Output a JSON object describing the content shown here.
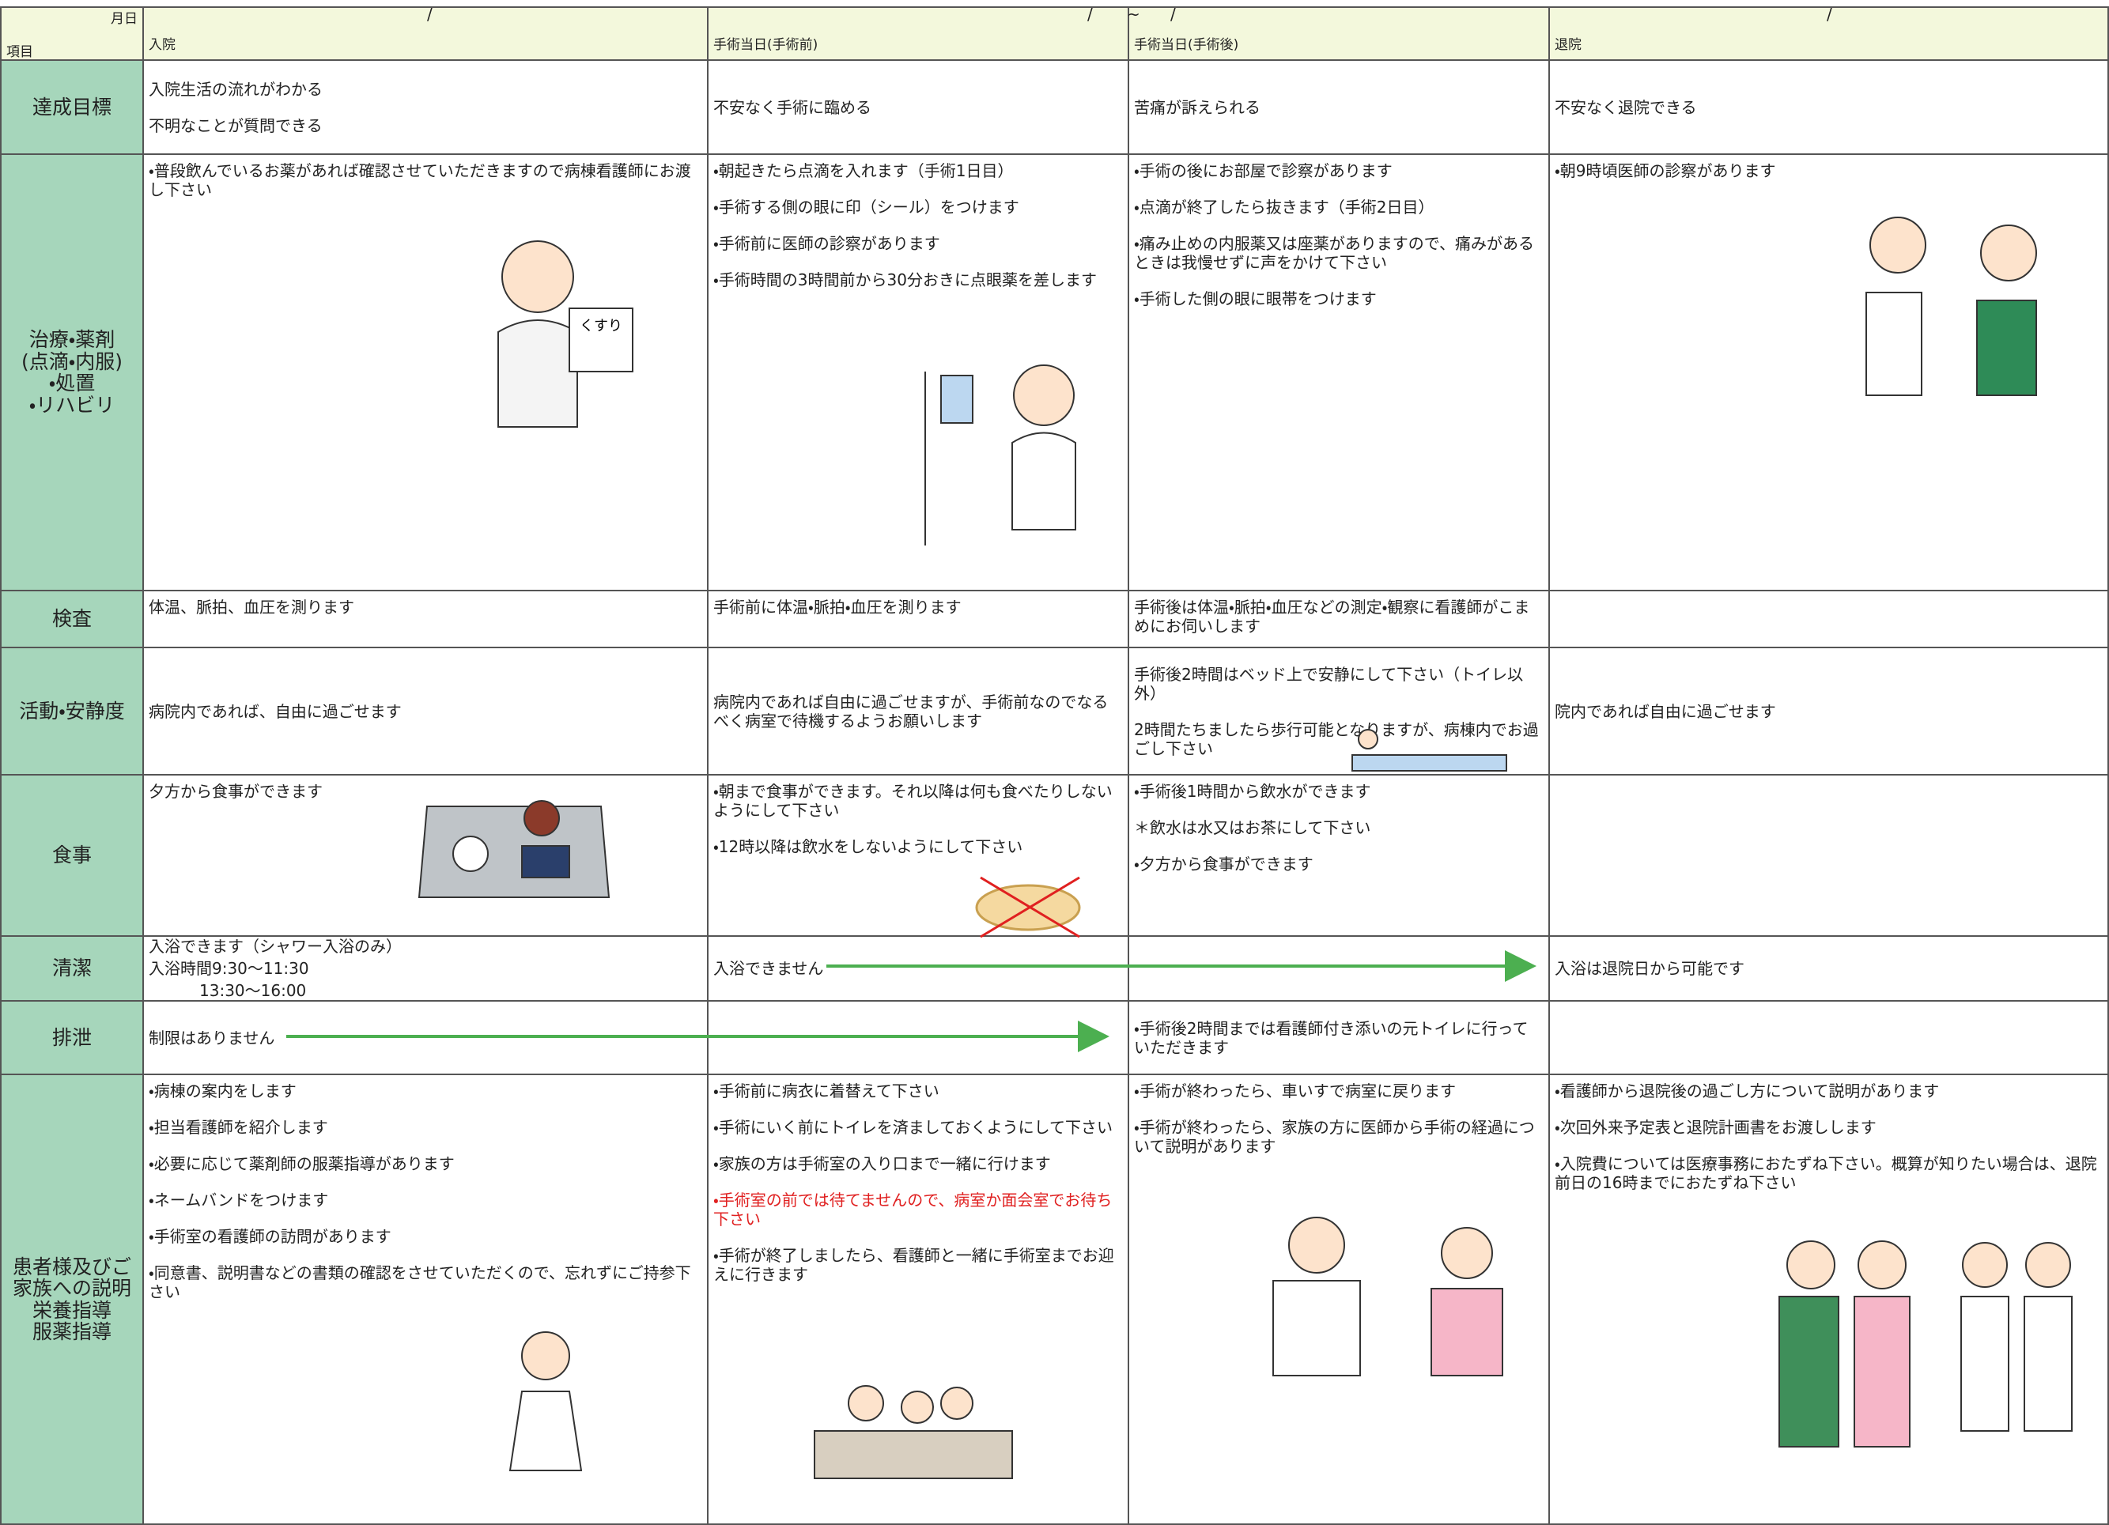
{
  "header": {
    "date_label": "月日",
    "item_label": "項目",
    "columns": [
      "入院",
      "手術当日(手術前)",
      "手術当日(手術後)",
      "退院"
    ],
    "date_marks": [
      "/",
      "/",
      "~",
      "/",
      "/"
    ]
  },
  "rows": [
    {
      "label": [
        "達成目標"
      ],
      "cells": [
        [
          "入院生活の流れがわかる",
          "不明なことが質問できる"
        ],
        [
          "不安なく手術に臨める"
        ],
        [
          "苦痛が訴えられる"
        ],
        [
          "不安なく退院できる"
        ]
      ]
    },
    {
      "label": [
        "治療・薬剤",
        "(点滴・内服)",
        "・処置",
        "・リハビリ"
      ],
      "illustration_text": "くすり",
      "cells": [
        [
          "・普段飲んでいるお薬があれば確認させていただきますので病棟看護師にお渡し下さい"
        ],
        [
          "・朝起きたら点滴を入れます（手術1日目）",
          "・手術する側の眼に印（シール）をつけます",
          "・手術前に医師の診察があります",
          "・手術時間の3時間前から30分おきに点眼薬を差します"
        ],
        [
          "・手術の後にお部屋で診察があります",
          "・点滴が終了したら抜きます（手術2日目）",
          "・痛み止めの内服薬又は座薬がありますので、痛みがあるときは我慢せずに声をかけて下さい",
          "・手術した側の眼に眼帯をつけます"
        ],
        [
          "・朝9時頃医師の診察があります"
        ]
      ]
    },
    {
      "label": [
        "検査"
      ],
      "cells": [
        [
          "体温、脈拍、血圧を測ります"
        ],
        [
          "手術前に体温・脈拍・血圧を測ります"
        ],
        [
          "手術後は体温・脈拍・血圧などの測定・観察に看護師がこまめにお伺いします"
        ],
        []
      ]
    },
    {
      "label": [
        "活動・安静度"
      ],
      "cells": [
        [
          "病院内であれば、自由に過ごせます"
        ],
        [
          "病院内であれば自由に過ごせますが、手術前なのでなるべく病室で待機するようお願いします"
        ],
        [
          "手術後2時間はベッド上で安静にして下さい（トイレ以外）",
          "2時間たちましたら歩行可能となりますが、病棟内でお過ごし下さい"
        ],
        [
          "院内であれば自由に過ごせます"
        ]
      ]
    },
    {
      "label": [
        "食事"
      ],
      "cells": [
        [
          "夕方から食事ができます"
        ],
        [
          "・朝まで食事ができます。それ以降は何も食べたりしないようにして下さい",
          "・12時以降は飲水をしないようにして下さい"
        ],
        [
          "・手術後1時間から飲水ができます",
          "＊飲水は水又はお茶にして下さい",
          "・夕方から食事ができます"
        ],
        []
      ]
    },
    {
      "label": [
        "清潔"
      ],
      "cells": [
        [
          "入浴できます（シャワー入浴のみ）",
          "入浴時間9:30～11:30",
          "13:30～16:00"
        ],
        [
          "入浴できません"
        ],
        [],
        [
          "入浴は退院日から可能です"
        ]
      ]
    },
    {
      "label": [
        "排泄"
      ],
      "cells": [
        [
          "制限はありません"
        ],
        [],
        [
          "・手術後2時間までは看護師付き添いの元トイレに行っていただきます"
        ],
        []
      ]
    },
    {
      "label": [
        "患者様及びご",
        "家族への説明",
        "栄養指導",
        "服薬指導"
      ],
      "cells": [
        [
          "・病棟の案内をします",
          "・担当看護師を紹介します",
          "・必要に応じて薬剤師の服薬指導があります",
          "・ネームバンドをつけます",
          "・手術室の看護師の訪問があります",
          "・同意書、説明書などの書類の確認をさせていただくので、忘れずにご持参下さい"
        ],
        [
          "・手術前に病衣に着替えて下さい",
          "・手術にいく前にトイレを済ましておくようにして下さい",
          "・家族の方は手術室の入り口まで一緒に行けます",
          "・手術室の前では待てませんので、病室か面会室でお待ち下さい",
          "・手術が終了しましたら、看護師と一緒に手術室までお迎えに行きます"
        ],
        [
          "・手術が終わったら、車いすで病室に戻ります",
          "・手術が終わったら、家族の方に医師から手術の経過について説明があります"
        ],
        [
          "・看護師から退院後の過ごし方について説明があります",
          "・次回外来予定表と退院計画書をお渡しします",
          "・入院費については医療事務におたずね下さい。概算が知りたい場合は、退院前日の16時までにおたずね下さい"
        ]
      ]
    }
  ]
}
